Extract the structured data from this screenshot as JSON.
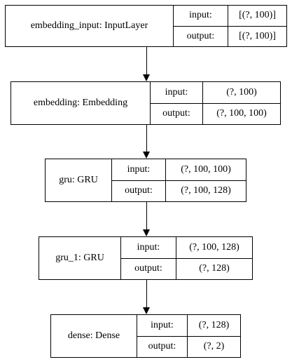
{
  "nodes": [
    {
      "title": "embedding_input: InputLayer",
      "input_label": "input:",
      "input_value": "[(?, 100)]",
      "output_label": "output:",
      "output_value": "[(?, 100)]"
    },
    {
      "title": "embedding: Embedding",
      "input_label": "input:",
      "input_value": "(?, 100)",
      "output_label": "output:",
      "output_value": "(?, 100, 100)"
    },
    {
      "title": "gru: GRU",
      "input_label": "input:",
      "input_value": "(?, 100, 100)",
      "output_label": "output:",
      "output_value": "(?, 100, 128)"
    },
    {
      "title": "gru_1: GRU",
      "input_label": "input:",
      "input_value": "(?, 100, 128)",
      "output_label": "output:",
      "output_value": "(?, 128)"
    },
    {
      "title": "dense: Dense",
      "input_label": "input:",
      "input_value": "(?, 128)",
      "output_label": "output:",
      "output_value": "(?, 2)"
    }
  ],
  "colors": {
    "background": "#ffffff",
    "stroke": "#000000",
    "text": "#000000"
  }
}
